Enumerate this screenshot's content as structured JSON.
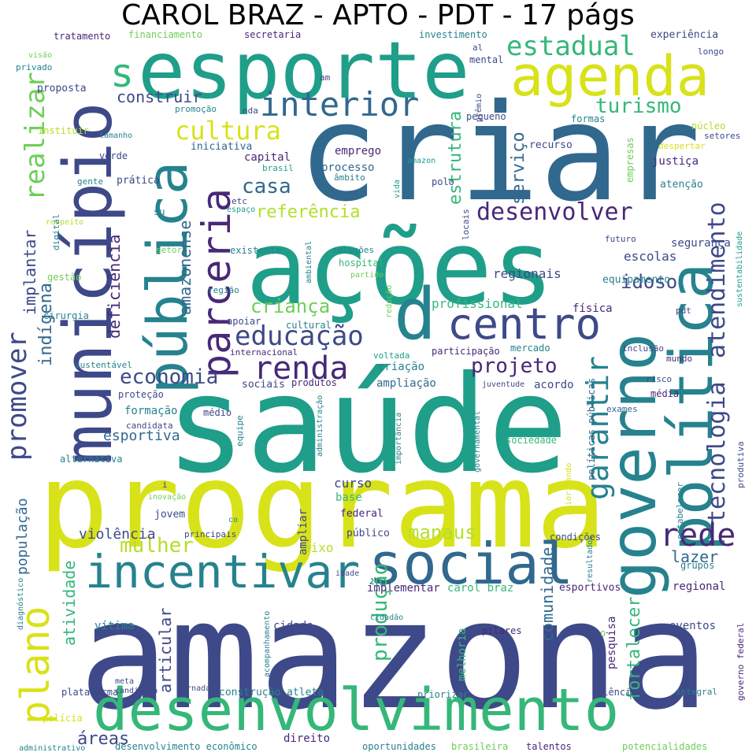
{
  "title": "CAROL BRAZ - APTO - PDT - 17 págs",
  "colors": {
    "purple": "#482878",
    "indigo": "#3e4989",
    "blue": "#31688e",
    "teal": "#26828e",
    "sea": "#1f9e89",
    "green": "#35b779",
    "lime": "#6ece58",
    "yellow": "#b5de2b",
    "gold": "#d8e219"
  },
  "words": {
    "amazona": "amazona",
    "saude": "saúde",
    "criar": "criar",
    "programa": "programa",
    "acoes": "ações",
    "esporte": "esporte",
    "municipio": "município",
    "desenvolvimento": "desenvolvimento",
    "politica": "política",
    "governo": "governo",
    "social": "social",
    "publica": "pública",
    "agenda": "agenda",
    "incentivar": "incentivar",
    "centro": "centro",
    "parceria": "parceria",
    "interior": "interior",
    "plano": "plano",
    "d": "d",
    "s": "s",
    "estadual": "estadual",
    "rede": "rede",
    "tecnologia": "tecnologia",
    "atendimento": "atendimento",
    "garantir": "garantir",
    "educacao": "educação",
    "renda": "renda",
    "cultura": "cultura",
    "desenvolver": "desenvolver",
    "promover": "promover",
    "realizar": "realizar",
    "turismo": "turismo",
    "casa": "casa",
    "referencia": "referência",
    "projeto": "projeto",
    "economia": "economia",
    "crianca": "criança",
    "mulher": "mulher",
    "idoso": "idoso",
    "construir": "construir",
    "estrutura": "estrutura",
    "servico": "serviço",
    "producao": "produção",
    "areas": "áreas",
    "implantar": "implantar",
    "deficiencia": "deficiência",
    "amazonense": "amazonense",
    "atividade": "atividade",
    "manaus": "manaus",
    "lazer": "lazer",
    "comunidade": "comunidade",
    "fortalecer": "fortalecer",
    "indigena": "indígena",
    "populacao": "população",
    "violencia": "violência",
    "esportiva": "esportiva",
    "articular": "articular",
    "profissional": "profissional",
    "escolas": "escolas",
    "regionais": "regionais",
    "curso": "curso",
    "base": "base",
    "eixo": "eixo",
    "criacao": "criação",
    "ampliacao": "ampliação",
    "sociais": "sociais",
    "acordo": "acordo",
    "seguranca": "segurança",
    "equipamento": "equipamento",
    "fisica": "física",
    "formacao": "formação",
    "emprego": "emprego",
    "processo": "processo",
    "capital": "capital",
    "iniciativa": "iniciativa",
    "recurso": "recurso",
    "justica": "justiça",
    "atencao": "atenção",
    "formas": "formas",
    "pequeno": "pequeno",
    "mental": "mental",
    "experiencia": "experiência",
    "longo": "longo",
    "secretaria": "secretaria",
    "investimento": "investimento",
    "financiamento": "financiamento",
    "tratamento": "tratamento",
    "proposta": "proposta",
    "promocao": "promoção",
    "nda": "nda",
    "am": "am",
    "al": "al",
    "premio": "prêmio",
    "visao": "visão",
    "privado": "privado",
    "instituir": "instituir",
    "tamanho": "tamanho",
    "verde": "verde",
    "gente": "gente",
    "pratica": "prática",
    "su": "su",
    "respeito": "respeito",
    "digital": "digital",
    "gestao": "gestão",
    "regiao": "região",
    "cirurgia": "cirurgia",
    "setor": "setor",
    "espaco": "espaço",
    "etc": "etc",
    "brasil": "brasil",
    "ambito": "âmbito",
    "existente": "existente",
    "solucoes": "soluções",
    "hospital": "hospital",
    "partido": "partido",
    "ambiental": "ambiental",
    "locais": "locais",
    "polo": "polo",
    "amazon": "amazon",
    "vida": "vida",
    "apoiar": "apoiar",
    "cultural": "cultural",
    "internacional": "internacional",
    "voltada": "voltada",
    "reducao": "redução",
    "participacao": "participação",
    "mercado": "mercado",
    "sustentavel": "sustentável",
    "protecao": "proteção",
    "produtos": "produtos",
    "juventude": "juventude",
    "medio": "médio",
    "candidata": "candidata",
    "equipe": "equipe",
    "alternativa": "alternativa",
    "administracao": "administração",
    "importancia": "importância",
    "governamental": "governamental",
    "politicas_publicas": "políticas públicas",
    "sociedade": "sociedade",
    "exames": "exames",
    "media": "média",
    "risco": "risco",
    "inclusao": "inclusão",
    "mundo": "mundo",
    "pdt": "pdt",
    "futuro": "futuro",
    "setores": "setores",
    "nucleo": "núcleo",
    "despertar": "despertar",
    "empresas": "empresas",
    "sustentabilidade": "sustentabilidade",
    "produtiva": "produtiva",
    "estabelecer": "estabelecer",
    "grupos": "grupos",
    "regional": "regional",
    "eventos": "eventos",
    "esportivos": "esportivos",
    "pesquisa": "pesquisa",
    "o": "o",
    "governo_federal": "governo federal",
    "integral": "integral",
    "ciencia": "ciência",
    "talentos": "talentos",
    "potencialidades": "potencialidades",
    "oportunidades": "oportunidades",
    "brasileira": "brasileira",
    "direito": "direito",
    "desenvolvimento_economico": "desenvolvimento econômico",
    "administrativo": "administrativo",
    "areas2": "áreas",
    "policia": "polícia",
    "plataforma": "plataforma",
    "construcao_atleta": "construção atleta",
    "priorizar": "priorizar",
    "jornada": "jornada",
    "meta": "meta",
    "candidata2": "candidata",
    "acompanhamento": "acompanhamento",
    "cidade": "cidade",
    "cidadao": "cidadão",
    "pilares": "pilares",
    "melhoria": "melhoria",
    "vitima": "vítima",
    "diagnostico": "diagnóstico",
    "idade": "idade",
    "implementar": "implementar",
    "carol_braz": "carol braz",
    "condicoes": "condições",
    "resultados": "resultados",
    "priorizando": "priorizando",
    "publico": "público",
    "federal": "federal",
    "ampliar": "ampliar",
    "jovem": "jovem",
    "inovacao": "inovação",
    "i": "i",
    "co": "co",
    "principais": "principais"
  }
}
